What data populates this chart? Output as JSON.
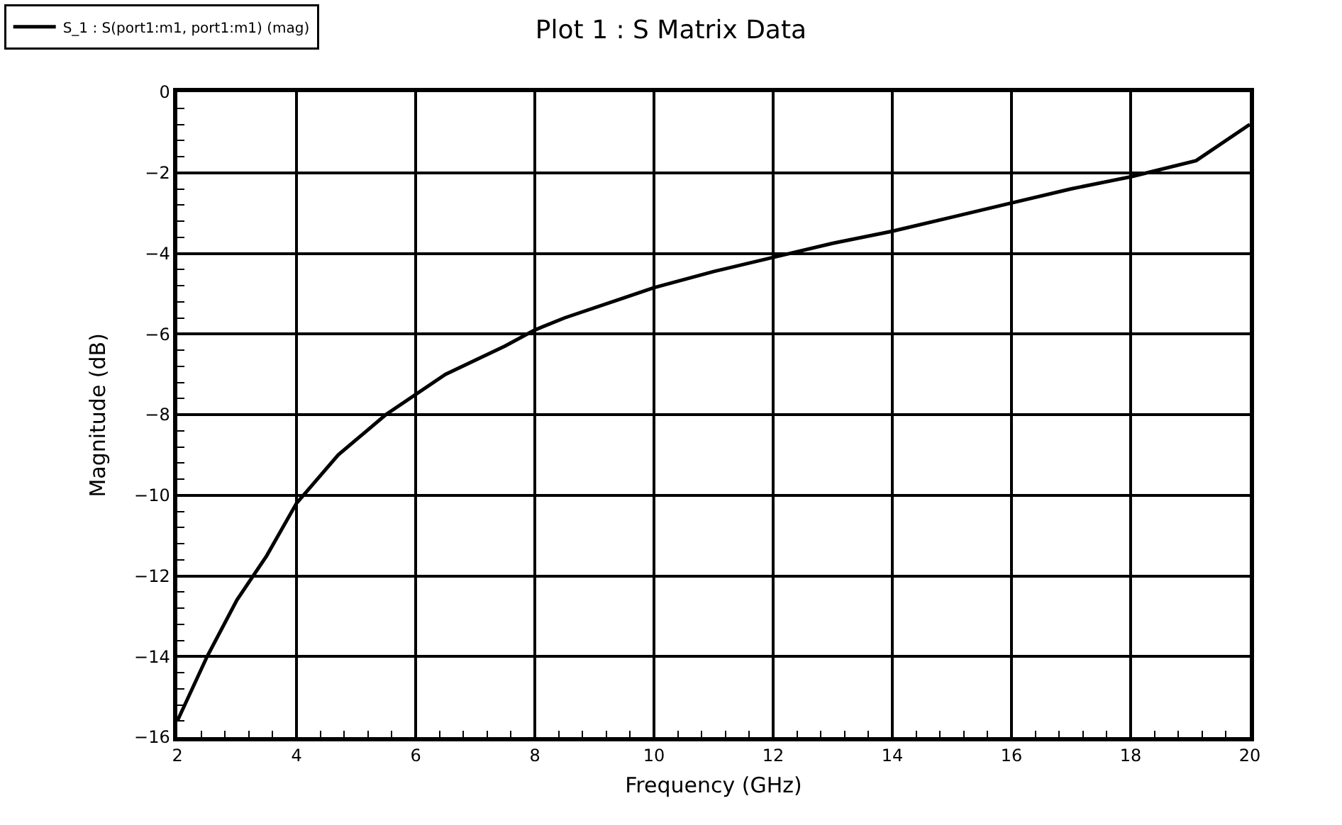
{
  "chart_data": {
    "type": "line",
    "title": "Plot 1 : S Matrix Data",
    "xlabel": "Frequency (GHz)",
    "ylabel": "Magnitude (dB)",
    "x": [
      2,
      2.5,
      3,
      3.5,
      4,
      4.7,
      5.5,
      6.5,
      7.5,
      8,
      8.5,
      9.5,
      10,
      11,
      12,
      13,
      14,
      15,
      16,
      17,
      18,
      19.1,
      20
    ],
    "series": [
      {
        "name": "S_1 : S(port1:m1, port1:m1) (mag)",
        "color": "#000000",
        "values": [
          -15.6,
          -14,
          -12.6,
          -11.5,
          -10.2,
          -9,
          -8,
          -7,
          -6.3,
          -5.9,
          -5.6,
          -5.1,
          -4.85,
          -4.45,
          -4.1,
          -3.75,
          -3.45,
          -3.1,
          -2.75,
          -2.4,
          -2.1,
          -1.7,
          -0.8
        ]
      }
    ],
    "xlim": [
      2,
      20
    ],
    "xticks": [
      2,
      4,
      6,
      8,
      10,
      12,
      14,
      16,
      18,
      20
    ],
    "ylim": [
      -16,
      0
    ],
    "yticks": [
      -16,
      -14,
      -12,
      -10,
      -8,
      -6,
      -4,
      -2,
      0
    ],
    "grid": true,
    "legend": "top left",
    "line_style": "solid",
    "marker": "none"
  }
}
